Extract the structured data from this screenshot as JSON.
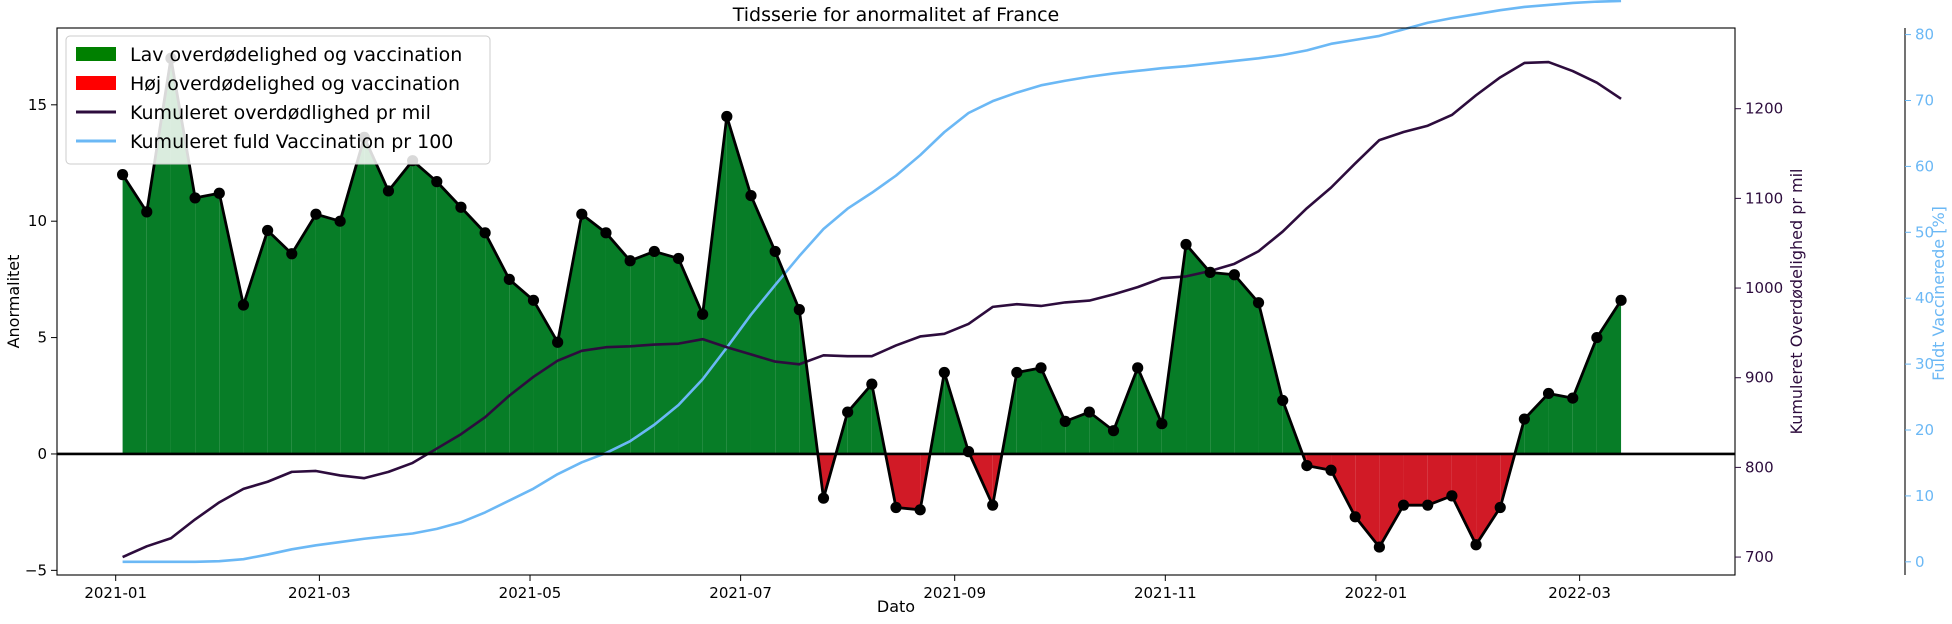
{
  "chart_data": {
    "type": "area",
    "title": "Tidsserie for anormalitet af France",
    "xlabel": "Dato",
    "ylabel": "Anormalitet",
    "y2label": "Kumuleret Overdødelighed pr mil",
    "y3label": "Fuldt Vaccinerede [%]",
    "xlim": [
      "2020-12-15",
      "2022-04-15"
    ],
    "ylim": [
      -5.2,
      18.3
    ],
    "y2lim": [
      680,
      1290
    ],
    "y3lim": [
      -2,
      81
    ],
    "xticks": [
      "2021-01",
      "2021-03",
      "2021-05",
      "2021-07",
      "2021-09",
      "2021-11",
      "2022-01",
      "2022-03"
    ],
    "yticks": [
      "−5",
      "0",
      "5",
      "10",
      "15"
    ],
    "y2ticks": [
      "700",
      "800",
      "900",
      "1000",
      "1100",
      "1200"
    ],
    "y3ticks": [
      "0",
      "10",
      "20",
      "30",
      "40",
      "50",
      "60",
      "70",
      "80"
    ],
    "legend_position": "upper-left",
    "grid": false,
    "colors": {
      "positive_fill": "#077d27",
      "negative_fill": "#d11a26",
      "anomaly_line": "#000000",
      "excess_mortality": "#2d0c3d",
      "vaccination": "#6bb8f5"
    },
    "legend": [
      {
        "label": "Lav overdødelighed og vaccination",
        "kind": "patch",
        "color": "#008000"
      },
      {
        "label": "Høj overdødelighed og vaccination",
        "kind": "patch",
        "color": "#ff0000"
      },
      {
        "label": "Kumuleret overdødlighed pr mil",
        "kind": "line",
        "color": "#2d0c3d"
      },
      {
        "label": "Kumuleret fuld Vaccination pr 100",
        "kind": "line",
        "color": "#6bb8f5"
      }
    ],
    "x": [
      "2021-01-03",
      "2021-01-10",
      "2021-01-17",
      "2021-01-24",
      "2021-01-31",
      "2021-02-07",
      "2021-02-14",
      "2021-02-21",
      "2021-02-28",
      "2021-03-07",
      "2021-03-14",
      "2021-03-21",
      "2021-03-28",
      "2021-04-04",
      "2021-04-11",
      "2021-04-18",
      "2021-04-25",
      "2021-05-02",
      "2021-05-09",
      "2021-05-16",
      "2021-05-23",
      "2021-05-30",
      "2021-06-06",
      "2021-06-13",
      "2021-06-20",
      "2021-06-27",
      "2021-07-04",
      "2021-07-11",
      "2021-07-18",
      "2021-07-25",
      "2021-08-01",
      "2021-08-08",
      "2021-08-15",
      "2021-08-22",
      "2021-08-29",
      "2021-09-05",
      "2021-09-12",
      "2021-09-19",
      "2021-09-26",
      "2021-10-03",
      "2021-10-10",
      "2021-10-17",
      "2021-10-24",
      "2021-10-31",
      "2021-11-07",
      "2021-11-14",
      "2021-11-21",
      "2021-11-28",
      "2021-12-05",
      "2021-12-12",
      "2021-12-19",
      "2021-12-26",
      "2022-01-02",
      "2022-01-09",
      "2022-01-16",
      "2022-01-23",
      "2022-01-30",
      "2022-02-06",
      "2022-02-13",
      "2022-02-20",
      "2022-02-27",
      "2022-03-06",
      "2022-03-13"
    ],
    "series": [
      {
        "name": "Anormalitet",
        "axis": "left",
        "values": [
          12.0,
          10.4,
          17.0,
          11.0,
          11.2,
          6.4,
          9.6,
          8.6,
          10.3,
          10.0,
          13.6,
          11.3,
          12.6,
          11.7,
          10.6,
          9.5,
          7.5,
          6.6,
          4.8,
          10.3,
          9.5,
          8.3,
          8.7,
          8.4,
          6.0,
          14.5,
          11.1,
          8.7,
          6.2,
          -1.9,
          1.8,
          3.0,
          -2.3,
          -2.4,
          3.5,
          0.1,
          -2.2,
          3.5,
          3.7,
          1.4,
          1.8,
          1.0,
          3.7,
          1.3,
          9.0,
          7.8,
          7.7,
          6.5,
          2.3,
          -0.5,
          -0.7,
          -2.7,
          -4.0,
          -2.2,
          -2.2,
          -1.8,
          -3.9,
          -2.3,
          1.5,
          2.6,
          2.4,
          5.0,
          6.6
        ]
      },
      {
        "name": "Kumuleret overdødlighed pr mil",
        "axis": "right1",
        "values": [
          700,
          712,
          721,
          742,
          761,
          776,
          784,
          795,
          796,
          791,
          788,
          795,
          805,
          821,
          837,
          856,
          880,
          901,
          919,
          930,
          934,
          935,
          937,
          938,
          943,
          934,
          926,
          918,
          915,
          925,
          924,
          924,
          936,
          946,
          949,
          960,
          979,
          982,
          980,
          984,
          986,
          993,
          1001,
          1011,
          1013,
          1019,
          1027,
          1041,
          1063,
          1089,
          1112,
          1139,
          1165,
          1174,
          1181,
          1193,
          1215,
          1235,
          1251,
          1252,
          1242,
          1229,
          1211
        ]
      },
      {
        "name": "Kumuleret fuld Vaccination pr 100",
        "axis": "right2",
        "values": [
          0,
          0,
          0,
          0,
          0.1,
          0.4,
          1.1,
          1.9,
          2.5,
          3.0,
          3.5,
          3.9,
          4.3,
          5.0,
          6.0,
          7.5,
          9.3,
          11.1,
          13.3,
          15.1,
          16.5,
          18.3,
          20.8,
          23.8,
          27.7,
          32.5,
          37.5,
          42.0,
          46.4,
          50.5,
          53.6,
          56.0,
          58.6,
          61.7,
          65.2,
          68.1,
          69.9,
          71.2,
          72.3,
          73.0,
          73.6,
          74.1,
          74.5,
          74.9,
          75.2,
          75.6,
          76.0,
          76.4,
          76.9,
          77.6,
          78.6,
          79.2,
          79.8,
          80.8,
          81.8,
          82.5,
          83.1,
          83.7,
          84.2,
          84.5,
          84.8,
          85.0,
          85.1
        ]
      }
    ]
  }
}
